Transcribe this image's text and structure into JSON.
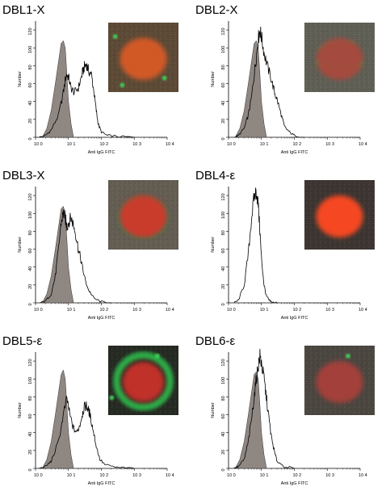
{
  "figure": {
    "xlabel": "Anti IgG FITC",
    "ylabel": "Number",
    "x_ticks": [
      "10 0",
      "10 1",
      "10 2",
      "10 3",
      "10 4"
    ],
    "y_ticks": [
      "0",
      "20",
      "40",
      "60",
      "80",
      "100",
      "120"
    ],
    "control_fill": "#8f8782",
    "line_color": "#000000"
  },
  "chart_data": [
    {
      "type": "area",
      "title": "DBL1-X",
      "x_scale": "log",
      "xlim": [
        1,
        10000
      ],
      "ylim": [
        0,
        130
      ],
      "control": {
        "x": [
          1.6,
          2.2,
          3,
          4,
          5,
          6,
          7,
          8,
          9,
          10,
          12,
          14
        ],
        "y": [
          0,
          10,
          30,
          60,
          85,
          105,
          108,
          100,
          70,
          40,
          15,
          2
        ]
      },
      "sample": {
        "x": [
          1.3,
          2,
          3,
          5,
          7,
          8.5,
          10,
          12,
          15,
          20,
          25,
          30,
          35,
          40,
          50,
          60,
          70,
          80,
          100,
          150,
          300,
          1000
        ],
        "y": [
          0,
          2,
          8,
          25,
          50,
          70,
          68,
          55,
          50,
          55,
          68,
          78,
          82,
          75,
          70,
          50,
          30,
          15,
          6,
          2,
          1,
          0
        ]
      },
      "inset": {
        "background": "#5c4a36",
        "cell": "#d85a26",
        "membrane": "none",
        "specks": [
          [
            0.2,
            0.9
          ],
          [
            0.8,
            0.8
          ],
          [
            0.1,
            0.2
          ]
        ]
      }
    },
    {
      "type": "area",
      "title": "DBL2-X",
      "x_scale": "log",
      "xlim": [
        1,
        10000
      ],
      "ylim": [
        0,
        130
      ],
      "control": {
        "x": [
          1.6,
          2.2,
          3,
          4,
          5,
          6,
          7,
          8,
          9,
          10,
          12,
          14
        ],
        "y": [
          0,
          10,
          30,
          60,
          85,
          105,
          108,
          100,
          70,
          40,
          15,
          2
        ]
      },
      "sample": {
        "x": [
          1.5,
          2,
          3,
          4,
          5,
          6,
          7,
          8,
          9,
          10,
          12,
          15,
          20,
          25,
          30,
          40,
          50,
          70,
          100,
          200
        ],
        "y": [
          0,
          2,
          10,
          25,
          45,
          70,
          90,
          110,
          120,
          112,
          95,
          80,
          65,
          50,
          42,
          25,
          12,
          6,
          2,
          0
        ]
      },
      "inset": {
        "background": "#5f5f55",
        "cell": "#a84a3e",
        "membrane": "partial",
        "specks": []
      }
    },
    {
      "type": "area",
      "title": "DBL3-X",
      "x_scale": "log",
      "xlim": [
        1,
        10000
      ],
      "ylim": [
        0,
        130
      ],
      "control": {
        "x": [
          1.6,
          2.2,
          3,
          4,
          5,
          6,
          7,
          8,
          9,
          10,
          12,
          14
        ],
        "y": [
          0,
          10,
          30,
          60,
          85,
          105,
          108,
          100,
          70,
          40,
          15,
          2
        ]
      },
      "sample": {
        "x": [
          1.4,
          2,
          3,
          4,
          5,
          6,
          7,
          8,
          9,
          10,
          12,
          14,
          17,
          20,
          25,
          30,
          40,
          60,
          100,
          200
        ],
        "y": [
          0,
          2,
          10,
          30,
          60,
          90,
          100,
          95,
          85,
          90,
          95,
          88,
          75,
          60,
          45,
          30,
          15,
          5,
          1,
          0
        ]
      },
      "inset": {
        "background": "#635d52",
        "cell": "#cf3a2c",
        "membrane": "faint",
        "specks": []
      }
    },
    {
      "type": "line",
      "title": "DBL4-ε",
      "x_scale": "log",
      "xlim": [
        1,
        10000
      ],
      "ylim": [
        0,
        130
      ],
      "sample": {
        "x": [
          1.5,
          2,
          3,
          4,
          5,
          6,
          7,
          8,
          9,
          10,
          12,
          14,
          17,
          20,
          30
        ],
        "y": [
          0,
          3,
          20,
          55,
          95,
          118,
          125,
          110,
          80,
          50,
          20,
          8,
          3,
          1,
          0
        ]
      },
      "inset": {
        "background": "#3c3531",
        "cell": "#ff4a22",
        "membrane": "none",
        "specks": []
      }
    },
    {
      "type": "area",
      "title": "DBL5-ε",
      "x_scale": "log",
      "xlim": [
        1,
        10000
      ],
      "ylim": [
        0,
        130
      ],
      "control": {
        "x": [
          1.6,
          2.2,
          3,
          4,
          5,
          6,
          7,
          8,
          9,
          10,
          12,
          14
        ],
        "y": [
          0,
          10,
          30,
          60,
          85,
          105,
          110,
          100,
          70,
          40,
          15,
          2
        ]
      },
      "sample": {
        "x": [
          1.3,
          2,
          3,
          5,
          7,
          9,
          11,
          14,
          18,
          22,
          26,
          30,
          35,
          40,
          45,
          55,
          70,
          90,
          130,
          300,
          1000
        ],
        "y": [
          0,
          2,
          8,
          30,
          60,
          78,
          60,
          45,
          40,
          48,
          60,
          68,
          70,
          66,
          60,
          45,
          25,
          10,
          4,
          1,
          0
        ]
      },
      "inset": {
        "background": "#252a22",
        "cell": "#c8302c",
        "membrane": "bright",
        "specks": [
          [
            0.7,
            0.15
          ],
          [
            0.05,
            0.75
          ]
        ]
      }
    },
    {
      "type": "area",
      "title": "DBL6-ε",
      "x_scale": "log",
      "xlim": [
        1,
        10000
      ],
      "ylim": [
        0,
        130
      ],
      "control": {
        "x": [
          1.6,
          2.2,
          3,
          4,
          5,
          6,
          7,
          8,
          9,
          10,
          12,
          14
        ],
        "y": [
          0,
          10,
          30,
          60,
          85,
          105,
          108,
          100,
          70,
          40,
          15,
          2
        ]
      },
      "sample": {
        "x": [
          1.5,
          2,
          3,
          4,
          5,
          6,
          7,
          8,
          9,
          10,
          12,
          14,
          17,
          20,
          25,
          30,
          50,
          100
        ],
        "y": [
          0,
          2,
          10,
          30,
          55,
          80,
          100,
          115,
          125,
          118,
          100,
          80,
          55,
          35,
          18,
          8,
          2,
          0
        ]
      },
      "inset": {
        "background": "#4b4640",
        "cell": "#a8403a",
        "membrane": "none",
        "specks": [
          [
            0.62,
            0.15
          ]
        ]
      }
    }
  ]
}
